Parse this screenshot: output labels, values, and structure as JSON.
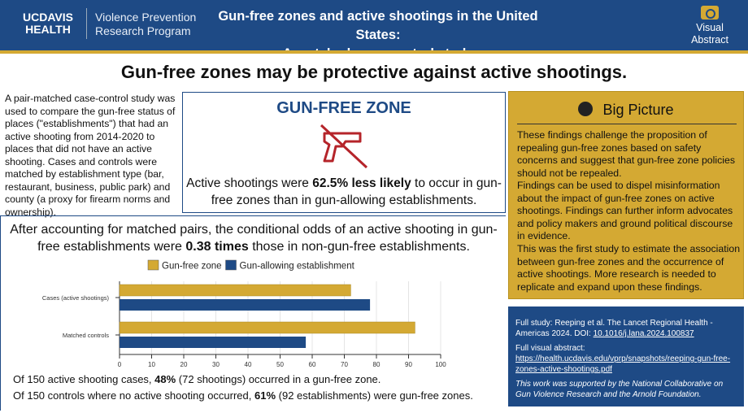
{
  "header": {
    "logo_line1": "UCDAVIS",
    "logo_line2": "HEALTH",
    "program_line1": "Violence Prevention",
    "program_line2": "Research Program",
    "title_line1": "Gun-free zones and active shootings in the United States:",
    "title_line2": "A matched case-control study",
    "badge": "Visual Abstract",
    "badge_icon": "camera-icon"
  },
  "headline": "Gun-free zones may be protective against active shootings.",
  "intro": "A pair-matched case-control study was used to compare the gun-free status of places (\"establishments\") that had an active shooting from 2014-2020 to places that did not have an active shooting. Cases and controls were matched by establishment type (bar, restaurant, business, public park) and county (a proxy for firearm norms and ownership).",
  "gfz": {
    "title": "GUN-FREE ZONE",
    "icon": "no-gun-icon",
    "text_pre": "Active shootings were ",
    "text_bold": "62.5% less likely",
    "text_post": " to occur in gun-free zones than in gun-allowing establishments."
  },
  "chart_header": {
    "pre": "After accounting for matched pairs, the conditional odds of an active shooting in gun-free establishments were ",
    "bold": "0.38 times",
    "post": " those in non-gun-free establishments."
  },
  "chart_data": {
    "type": "bar",
    "orientation": "horizontal",
    "categories": [
      "Cases (active shootings)",
      "Matched controls"
    ],
    "series": [
      {
        "name": "Gun-free zone",
        "color": "#d4a933",
        "values": [
          72,
          92
        ]
      },
      {
        "name": "Gun-allowing establishment",
        "color": "#1e4a85",
        "values": [
          78,
          58
        ]
      }
    ],
    "xlim": [
      0,
      100
    ],
    "xticks": [
      "0",
      "10",
      "20",
      "30",
      "40",
      "50",
      "60",
      "70",
      "80",
      "90",
      "100"
    ],
    "grid": true,
    "legend": "top"
  },
  "stats": [
    {
      "pre": "Of 150 active shooting cases, ",
      "bold": "48%",
      "post": " (72 shootings) occurred in a gun-free zone."
    },
    {
      "pre": "Of 150 controls where no active shooting occurred, ",
      "bold": "61%",
      "post": " (92 establishments) were gun-free zones."
    }
  ],
  "big_picture": {
    "title": "Big Picture",
    "icon": "globe-icon",
    "paragraphs": [
      "These findings challenge the proposition of repealing gun-free zones based on safety concerns and suggest that gun-free zone policies should not be repealed.",
      "Findings can be used to dispel misinformation about the impact of gun-free zones on active shootings. Findings can further inform advocates and policy makers and ground political discourse in evidence.",
      "This was the first study to estimate the association between gun-free zones and the occurrence of active shootings. More research is needed to replicate and expand upon these findings."
    ]
  },
  "footer": {
    "study_pre": "Full study: Reeping et al. The Lancet Regional Health - Americas 2024. DOI: ",
    "doi": "10.1016/j.lana.2024.100837",
    "va_label": "Full visual abstract:",
    "va_link": "https://health.ucdavis.edu/vprp/snapshots/reeping-gun-free-zones-active-shootings.pdf",
    "support": "This work was supported by the National Collaborative on Gun Violence Research and the Arnold Foundation."
  }
}
